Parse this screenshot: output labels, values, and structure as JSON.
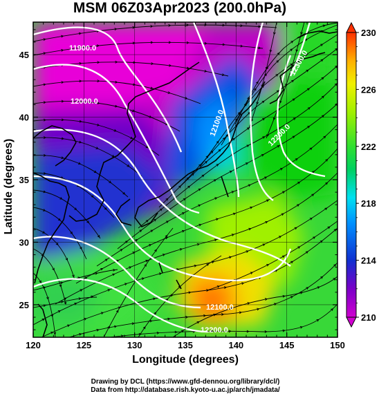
{
  "title": "MSM 06Z03Apr2023 (200.0hPa)",
  "axes": {
    "x_label": "Longitude (degrees)",
    "y_label": "Latitude  (degrees)",
    "x_ticks": [
      "120",
      "125",
      "130",
      "135",
      "140",
      "145",
      "150"
    ],
    "y_ticks": [
      "25",
      "30",
      "35",
      "40",
      "45"
    ],
    "x_range": [
      120,
      150
    ],
    "y_range": [
      22.4,
      47.6
    ]
  },
  "colorbar": {
    "ticks": [
      "210",
      "214",
      "218",
      "222",
      "226",
      "230"
    ],
    "range": [
      210,
      230
    ]
  },
  "contour_labels": [
    "11900.0",
    "12000.0",
    "12100.0",
    "12200.0",
    "12300.0",
    "12100.0",
    "12200.0"
  ],
  "credits": {
    "line1": "Drawing by DCL (https://www.gfd-dennou.org/library/dcl/)",
    "line2": "Data from http://database.rish.kyoto-u.ac.jp/arch/jmadata/"
  },
  "colors": {
    "scale": [
      "#d000d0",
      "#7a00c8",
      "#1030d0",
      "#0090ff",
      "#00e0f0",
      "#00d060",
      "#30e030",
      "#a0f000",
      "#f0f000",
      "#ffb000",
      "#ff3000"
    ]
  }
}
